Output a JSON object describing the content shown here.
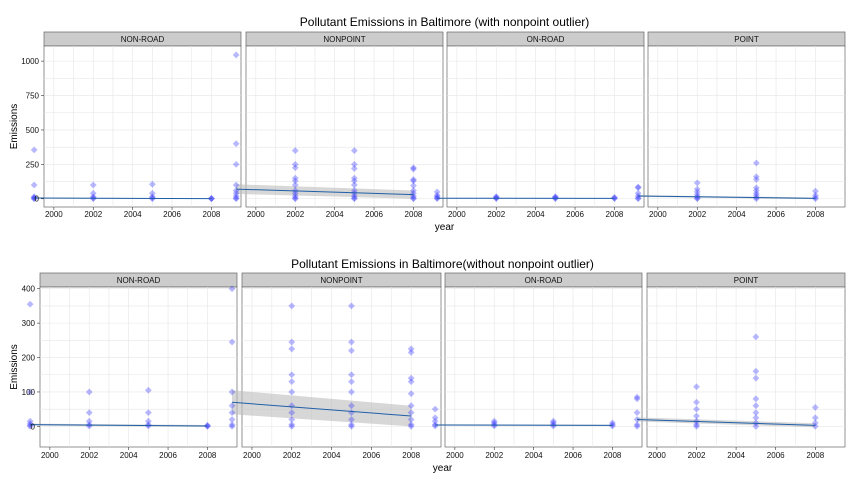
{
  "chart_data": [
    {
      "type": "scatter",
      "title": "Pollutant Emissions in Baltimore (with nonpoint outlier)",
      "xlabel": "year",
      "ylabel": "Emissions",
      "xlim": [
        1999.5,
        2009.5
      ],
      "ylim": [
        -60,
        1110
      ],
      "xticks": [
        2000,
        2002,
        2004,
        2006,
        2008
      ],
      "yticks": [
        0,
        250,
        500,
        750,
        1000
      ],
      "grid": true,
      "point_color": "#3333ff",
      "line_color": "#1f5fa8",
      "band_color": "#bdbdbd",
      "facets": [
        {
          "name": "NON-ROAD",
          "points": [
            [
              1999,
              355
            ],
            [
              1999,
              100
            ],
            [
              1999,
              15
            ],
            [
              1999,
              8
            ],
            [
              1999,
              3
            ],
            [
              1999,
              0
            ],
            [
              2002,
              100
            ],
            [
              2002,
              40
            ],
            [
              2002,
              15
            ],
            [
              2002,
              5
            ],
            [
              2002,
              1
            ],
            [
              2005,
              105
            ],
            [
              2005,
              40
            ],
            [
              2005,
              15
            ],
            [
              2005,
              5
            ],
            [
              2005,
              1
            ],
            [
              2008,
              3
            ],
            [
              2008,
              1
            ],
            [
              2008,
              0
            ]
          ],
          "trend": {
            "y_start": 5,
            "y_end": 1,
            "se_start": 3,
            "se_end": 3
          }
        },
        {
          "name": "NONPOINT",
          "points": [
            [
              1999,
              1045
            ],
            [
              1999,
              400
            ],
            [
              1999,
              250
            ],
            [
              1999,
              100
            ],
            [
              1999,
              60
            ],
            [
              1999,
              40
            ],
            [
              1999,
              20
            ],
            [
              1999,
              5
            ],
            [
              1999,
              0
            ],
            [
              2002,
              350
            ],
            [
              2002,
              250
            ],
            [
              2002,
              225
            ],
            [
              2002,
              150
            ],
            [
              2002,
              130
            ],
            [
              2002,
              100
            ],
            [
              2002,
              60
            ],
            [
              2002,
              40
            ],
            [
              2002,
              20
            ],
            [
              2002,
              5
            ],
            [
              2002,
              0
            ],
            [
              2005,
              350
            ],
            [
              2005,
              250
            ],
            [
              2005,
              220
            ],
            [
              2005,
              150
            ],
            [
              2005,
              130
            ],
            [
              2005,
              100
            ],
            [
              2005,
              60
            ],
            [
              2005,
              40
            ],
            [
              2005,
              20
            ],
            [
              2005,
              5
            ],
            [
              2005,
              0
            ],
            [
              2008,
              225
            ],
            [
              2008,
              215
            ],
            [
              2008,
              140
            ],
            [
              2008,
              130
            ],
            [
              2008,
              95
            ],
            [
              2008,
              60
            ],
            [
              2008,
              40
            ],
            [
              2008,
              20
            ],
            [
              2008,
              5
            ],
            [
              2008,
              0
            ]
          ],
          "trend": {
            "y_start": 70,
            "y_end": 30,
            "se_start": 35,
            "se_end": 30
          }
        },
        {
          "name": "ON-ROAD",
          "points": [
            [
              1999,
              50
            ],
            [
              1999,
              25
            ],
            [
              1999,
              15
            ],
            [
              1999,
              5
            ],
            [
              1999,
              1
            ],
            [
              2002,
              15
            ],
            [
              2002,
              10
            ],
            [
              2002,
              5
            ],
            [
              2002,
              1
            ],
            [
              2005,
              15
            ],
            [
              2005,
              10
            ],
            [
              2005,
              5
            ],
            [
              2005,
              1
            ],
            [
              2008,
              10
            ],
            [
              2008,
              5
            ],
            [
              2008,
              1
            ]
          ],
          "trend": {
            "y_start": 4,
            "y_end": 3,
            "se_start": 2,
            "se_end": 2
          }
        },
        {
          "name": "POINT",
          "points": [
            [
              1999,
              85
            ],
            [
              1999,
              80
            ],
            [
              1999,
              40
            ],
            [
              1999,
              20
            ],
            [
              1999,
              5
            ],
            [
              1999,
              0
            ],
            [
              2002,
              115
            ],
            [
              2002,
              70
            ],
            [
              2002,
              50
            ],
            [
              2002,
              30
            ],
            [
              2002,
              15
            ],
            [
              2002,
              5
            ],
            [
              2002,
              0
            ],
            [
              2005,
              260
            ],
            [
              2005,
              160
            ],
            [
              2005,
              140
            ],
            [
              2005,
              80
            ],
            [
              2005,
              60
            ],
            [
              2005,
              40
            ],
            [
              2005,
              25
            ],
            [
              2005,
              10
            ],
            [
              2005,
              0
            ],
            [
              2008,
              55
            ],
            [
              2008,
              25
            ],
            [
              2008,
              10
            ],
            [
              2008,
              0
            ]
          ],
          "trend": {
            "y_start": 20,
            "y_end": 3,
            "se_start": 6,
            "se_end": 6
          }
        }
      ]
    },
    {
      "type": "scatter",
      "title": "Pollutant Emissions in Baltimore(without nonpoint outlier)",
      "xlabel": "year",
      "ylabel": "Emissions",
      "xlim": [
        1999.5,
        2009.5
      ],
      "ylim": [
        -60,
        405
      ],
      "xticks": [
        2000,
        2002,
        2004,
        2006,
        2008
      ],
      "yticks": [
        0,
        100,
        200,
        300,
        400
      ],
      "grid": true,
      "point_color": "#3333ff",
      "line_color": "#1f5fa8",
      "band_color": "#bdbdbd",
      "facets": [
        {
          "name": "NON-ROAD",
          "points": [
            [
              1999,
              355
            ],
            [
              1999,
              100
            ],
            [
              1999,
              15
            ],
            [
              1999,
              8
            ],
            [
              1999,
              3
            ],
            [
              1999,
              0
            ],
            [
              2002,
              100
            ],
            [
              2002,
              40
            ],
            [
              2002,
              15
            ],
            [
              2002,
              5
            ],
            [
              2002,
              1
            ],
            [
              2005,
              105
            ],
            [
              2005,
              40
            ],
            [
              2005,
              15
            ],
            [
              2005,
              5
            ],
            [
              2005,
              1
            ],
            [
              2008,
              3
            ],
            [
              2008,
              1
            ],
            [
              2008,
              0
            ]
          ],
          "trend": {
            "y_start": 5,
            "y_end": 1,
            "se_start": 3,
            "se_end": 3
          }
        },
        {
          "name": "NONPOINT",
          "points": [
            [
              1999,
              400
            ],
            [
              1999,
              245
            ],
            [
              1999,
              100
            ],
            [
              1999,
              60
            ],
            [
              1999,
              40
            ],
            [
              1999,
              20
            ],
            [
              1999,
              5
            ],
            [
              1999,
              0
            ],
            [
              2002,
              350
            ],
            [
              2002,
              245
            ],
            [
              2002,
              225
            ],
            [
              2002,
              150
            ],
            [
              2002,
              130
            ],
            [
              2002,
              100
            ],
            [
              2002,
              60
            ],
            [
              2002,
              40
            ],
            [
              2002,
              20
            ],
            [
              2002,
              5
            ],
            [
              2002,
              0
            ],
            [
              2005,
              350
            ],
            [
              2005,
              245
            ],
            [
              2005,
              220
            ],
            [
              2005,
              150
            ],
            [
              2005,
              130
            ],
            [
              2005,
              100
            ],
            [
              2005,
              60
            ],
            [
              2005,
              40
            ],
            [
              2005,
              20
            ],
            [
              2005,
              5
            ],
            [
              2005,
              0
            ],
            [
              2008,
              225
            ],
            [
              2008,
              215
            ],
            [
              2008,
              140
            ],
            [
              2008,
              130
            ],
            [
              2008,
              95
            ],
            [
              2008,
              60
            ],
            [
              2008,
              40
            ],
            [
              2008,
              20
            ],
            [
              2008,
              5
            ],
            [
              2008,
              0
            ]
          ],
          "trend": {
            "y_start": 70,
            "y_end": 30,
            "se_start": 35,
            "se_end": 30
          }
        },
        {
          "name": "ON-ROAD",
          "points": [
            [
              1999,
              50
            ],
            [
              1999,
              25
            ],
            [
              1999,
              15
            ],
            [
              1999,
              5
            ],
            [
              1999,
              1
            ],
            [
              2002,
              15
            ],
            [
              2002,
              10
            ],
            [
              2002,
              5
            ],
            [
              2002,
              1
            ],
            [
              2005,
              15
            ],
            [
              2005,
              10
            ],
            [
              2005,
              5
            ],
            [
              2005,
              1
            ],
            [
              2008,
              10
            ],
            [
              2008,
              5
            ],
            [
              2008,
              1
            ]
          ],
          "trend": {
            "y_start": 4,
            "y_end": 3,
            "se_start": 2,
            "se_end": 2
          }
        },
        {
          "name": "POINT",
          "points": [
            [
              1999,
              85
            ],
            [
              1999,
              80
            ],
            [
              1999,
              40
            ],
            [
              1999,
              20
            ],
            [
              1999,
              5
            ],
            [
              1999,
              0
            ],
            [
              2002,
              115
            ],
            [
              2002,
              70
            ],
            [
              2002,
              50
            ],
            [
              2002,
              30
            ],
            [
              2002,
              15
            ],
            [
              2002,
              5
            ],
            [
              2002,
              0
            ],
            [
              2005,
              260
            ],
            [
              2005,
              160
            ],
            [
              2005,
              140
            ],
            [
              2005,
              80
            ],
            [
              2005,
              60
            ],
            [
              2005,
              40
            ],
            [
              2005,
              25
            ],
            [
              2005,
              10
            ],
            [
              2005,
              0
            ],
            [
              2008,
              55
            ],
            [
              2008,
              25
            ],
            [
              2008,
              10
            ],
            [
              2008,
              0
            ]
          ],
          "trend": {
            "y_start": 20,
            "y_end": 3,
            "se_start": 6,
            "se_end": 6
          }
        }
      ]
    }
  ]
}
